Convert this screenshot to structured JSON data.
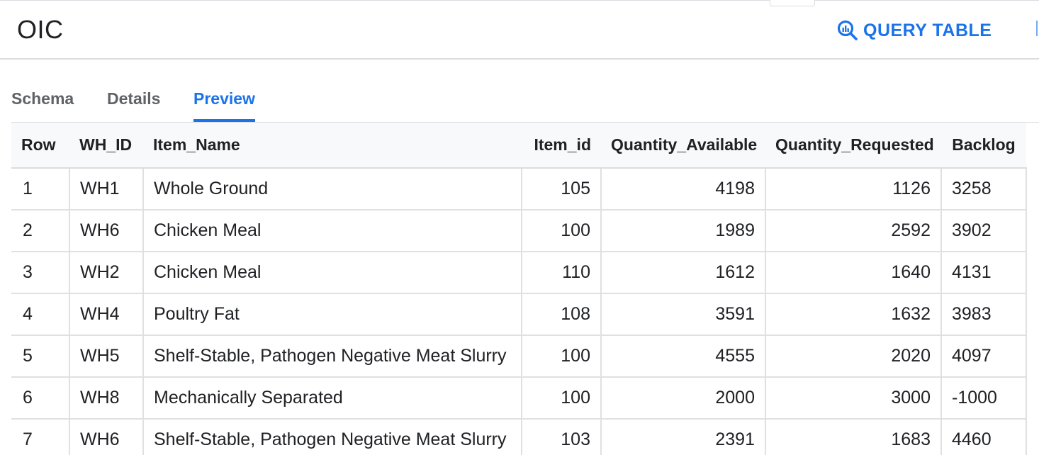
{
  "header": {
    "title": "OIC",
    "query_button_label": "QUERY TABLE",
    "query_button_icon": "query-search-icon",
    "accent_color": "#1a73e8"
  },
  "tabs": [
    {
      "label": "Schema",
      "active": false
    },
    {
      "label": "Details",
      "active": false
    },
    {
      "label": "Preview",
      "active": true
    }
  ],
  "table": {
    "columns": [
      "Row",
      "WH_ID",
      "Item_Name",
      "Item_id",
      "Quantity_Available",
      "Quantity_Requested",
      "Backlog"
    ],
    "rows": [
      [
        "1",
        "WH1",
        "Whole Ground",
        "105",
        "4198",
        "1126",
        "3258"
      ],
      [
        "2",
        "WH6",
        "Chicken Meal",
        "100",
        "1989",
        "2592",
        "3902"
      ],
      [
        "3",
        "WH2",
        "Chicken Meal",
        "110",
        "1612",
        "1640",
        "4131"
      ],
      [
        "4",
        "WH4",
        "Poultry Fat",
        "108",
        "3591",
        "1632",
        "3983"
      ],
      [
        "5",
        "WH5",
        "Shelf-Stable, Pathogen Negative Meat Slurry",
        "100",
        "4555",
        "2020",
        "4097"
      ],
      [
        "6",
        "WH8",
        "Mechanically Separated",
        "100",
        "2000",
        "3000",
        "-1000"
      ],
      [
        "7",
        "WH6",
        "Shelf-Stable, Pathogen Negative Meat Slurry",
        "103",
        "2391",
        "1683",
        "4460"
      ]
    ]
  }
}
